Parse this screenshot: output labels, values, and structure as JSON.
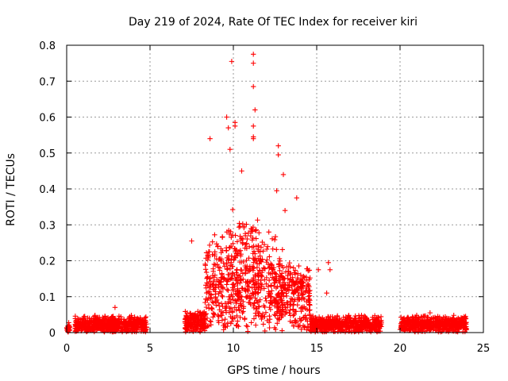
{
  "chart_data": {
    "type": "scatter",
    "title": "Day 219 of 2024, Rate Of TEC Index for receiver kiri",
    "xlabel": "GPS time / hours",
    "ylabel": "ROTI / TECUs",
    "xlim": [
      0,
      25
    ],
    "ylim": [
      0,
      0.8
    ],
    "xticks": [
      "0",
      "5",
      "10",
      "15",
      "20",
      "25"
    ],
    "yticks": [
      "0",
      "0.1",
      "0.2",
      "0.3",
      "0.4",
      "0.5",
      "0.6",
      "0.7",
      "0.8"
    ],
    "grid": true,
    "legend": "none",
    "marker": "plus",
    "color": "#ff0000",
    "series": [
      {
        "segments": [
          {
            "x_start": 0.0,
            "x_end": 0.2,
            "baseline": 0.015,
            "spread": 0.01
          },
          {
            "x_start": 0.5,
            "x_end": 4.8,
            "baseline": 0.025,
            "spread": 0.02
          },
          {
            "x_start": 7.1,
            "x_end": 8.3,
            "baseline": 0.03,
            "spread": 0.03
          },
          {
            "x_start": 8.3,
            "x_end": 14.6,
            "baseline": 0.12,
            "spread": 0.2
          },
          {
            "x_start": 14.6,
            "x_end": 18.9,
            "baseline": 0.025,
            "spread": 0.02
          },
          {
            "x_start": 20.0,
            "x_end": 24.0,
            "baseline": 0.025,
            "spread": 0.02
          }
        ],
        "highlights": [
          {
            "x": 2.9,
            "y": 0.07
          },
          {
            "x": 7.5,
            "y": 0.255
          },
          {
            "x": 8.6,
            "y": 0.54
          },
          {
            "x": 9.6,
            "y": 0.6
          },
          {
            "x": 9.7,
            "y": 0.57
          },
          {
            "x": 9.9,
            "y": 0.755
          },
          {
            "x": 10.1,
            "y": 0.585
          },
          {
            "x": 10.1,
            "y": 0.575
          },
          {
            "x": 9.8,
            "y": 0.51
          },
          {
            "x": 10.5,
            "y": 0.45
          },
          {
            "x": 11.2,
            "y": 0.775
          },
          {
            "x": 11.2,
            "y": 0.75
          },
          {
            "x": 11.2,
            "y": 0.685
          },
          {
            "x": 11.3,
            "y": 0.62
          },
          {
            "x": 11.2,
            "y": 0.575
          },
          {
            "x": 11.2,
            "y": 0.545
          },
          {
            "x": 11.2,
            "y": 0.54
          },
          {
            "x": 12.7,
            "y": 0.52
          },
          {
            "x": 12.7,
            "y": 0.495
          },
          {
            "x": 13.0,
            "y": 0.44
          },
          {
            "x": 12.6,
            "y": 0.395
          },
          {
            "x": 13.8,
            "y": 0.375
          },
          {
            "x": 13.1,
            "y": 0.34
          },
          {
            "x": 15.1,
            "y": 0.175
          },
          {
            "x": 15.7,
            "y": 0.195
          },
          {
            "x": 15.8,
            "y": 0.175
          },
          {
            "x": 15.6,
            "y": 0.11
          },
          {
            "x": 18.6,
            "y": 0.04
          },
          {
            "x": 21.8,
            "y": 0.055
          }
        ]
      }
    ]
  }
}
